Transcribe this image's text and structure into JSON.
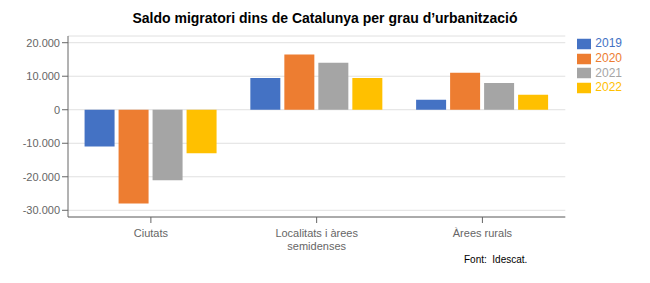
{
  "chart_data": {
    "type": "bar",
    "title": "Saldo migratori dins de Catalunya per grau d’urbanització",
    "categories": [
      "Ciutats",
      "Localitats i àrees\nsemidenses",
      "Àrees rurals"
    ],
    "series": [
      {
        "name": "2019",
        "color": "#4472C4",
        "values": [
          -11000,
          9500,
          3000
        ]
      },
      {
        "name": "2020",
        "color": "#ED7D31",
        "values": [
          -28000,
          16500,
          11000
        ]
      },
      {
        "name": "2021",
        "color": "#A5A5A5",
        "values": [
          -21000,
          14000,
          8000
        ]
      },
      {
        "name": "2022",
        "color": "#FFC000",
        "values": [
          -13000,
          9500,
          4500
        ]
      }
    ],
    "ylim": [
      -32000,
      22000
    ],
    "yticks": [
      {
        "value": -30000,
        "label": "-30.000"
      },
      {
        "value": -20000,
        "label": "-20.000"
      },
      {
        "value": -10000,
        "label": "-10.000"
      },
      0,
      {
        "value": 10000,
        "label": "10.000"
      },
      {
        "value": 20000,
        "label": "20.000"
      }
    ],
    "grid": true,
    "legend": "right",
    "annotations": [
      "Font:  Idescat."
    ]
  }
}
